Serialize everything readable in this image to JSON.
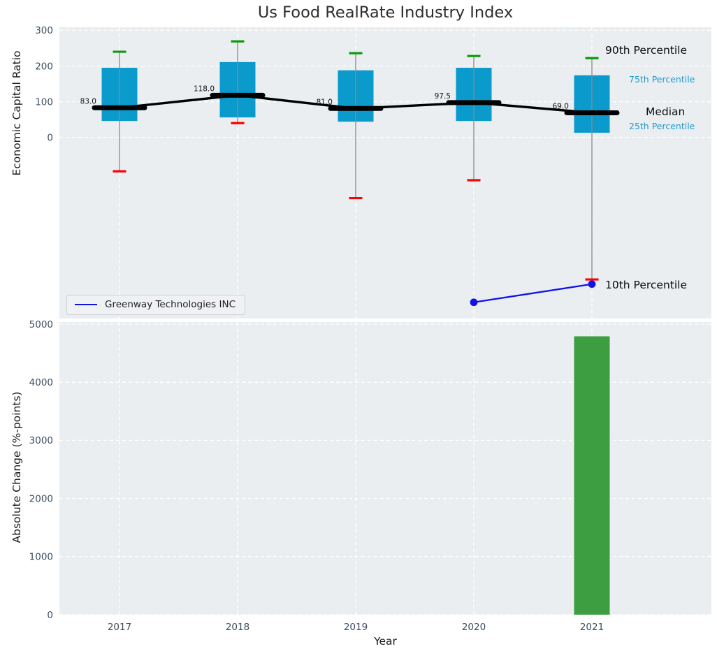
{
  "title": "Us Food RealRate Industry Index",
  "top_chart": {
    "ylabel": "Economic Capital Ratio",
    "series_name": "Greenway Technologies INC",
    "annotations": {
      "p90": "90th Percentile",
      "p75": "75th Percentile",
      "median": "Median",
      "p25": "25th Percentile",
      "p10": "10th Percentile"
    }
  },
  "bottom_chart": {
    "ylabel": "Absolute Change (%-points)",
    "xlabel": "Year"
  },
  "chart_data": [
    {
      "type": "boxplot",
      "title": "Us Food RealRate Industry Index",
      "xlabel": "Year",
      "ylabel": "Economic Capital Ratio",
      "categories": [
        "2017",
        "2018",
        "2019",
        "2020",
        "2021"
      ],
      "yticks": [
        0,
        100,
        200,
        300
      ],
      "ytick_labels": [
        "0",
        "100",
        "200",
        "300"
      ],
      "ylim": [
        -505,
        308
      ],
      "grid": true,
      "boxes": [
        {
          "year": "2017",
          "p90": 240,
          "p75": 195,
          "median": 83.0,
          "p25": 46,
          "p10": -95
        },
        {
          "year": "2018",
          "p90": 269,
          "p75": 211,
          "median": 118.0,
          "p25": 56,
          "p10": 40
        },
        {
          "year": "2019",
          "p90": 236,
          "p75": 188,
          "median": 81.0,
          "p25": 44,
          "p10": -170
        },
        {
          "year": "2020",
          "p90": 228,
          "p75": 195,
          "median": 97.5,
          "p25": 46,
          "p10": -120
        },
        {
          "year": "2021",
          "p90": 222,
          "p75": 174,
          "median": 69.0,
          "p25": 13,
          "p10": -398
        }
      ],
      "median_labels": [
        "83.0",
        "118.0",
        "81.0",
        "97.5",
        "69.0"
      ],
      "series": [
        {
          "name": "Greenway Technologies INC",
          "x": [
            "2020",
            "2021"
          ],
          "values": [
            -462,
            -411
          ]
        }
      ],
      "legend_position": "lower left"
    },
    {
      "type": "bar",
      "categories": [
        "2017",
        "2018",
        "2019",
        "2020",
        "2021"
      ],
      "values": [
        0,
        0,
        0,
        0,
        4790
      ],
      "xlabel": "Year",
      "ylabel": "Absolute Change (%-points)",
      "yticks": [
        0,
        1000,
        2000,
        3000,
        4000,
        5000
      ],
      "ytick_labels": [
        "0",
        "1000",
        "2000",
        "3000",
        "4000",
        "5000"
      ],
      "ylim": [
        0,
        5050
      ],
      "grid": true
    }
  ],
  "colors": {
    "box_fill": "#0a9acc",
    "median_line": "#000000",
    "whisker": "#8a8a8a",
    "cap_90": "#0b9b0b",
    "cap_10": "#fe0000",
    "company_line": "#1212e6",
    "bar_fill": "#3d9e41",
    "axes_bg": "#eaeef1",
    "grid": "#ffffff",
    "tick_label": "#3d4e60",
    "annotation_cyan": "#2199cb",
    "median_label_text": "#111111"
  }
}
